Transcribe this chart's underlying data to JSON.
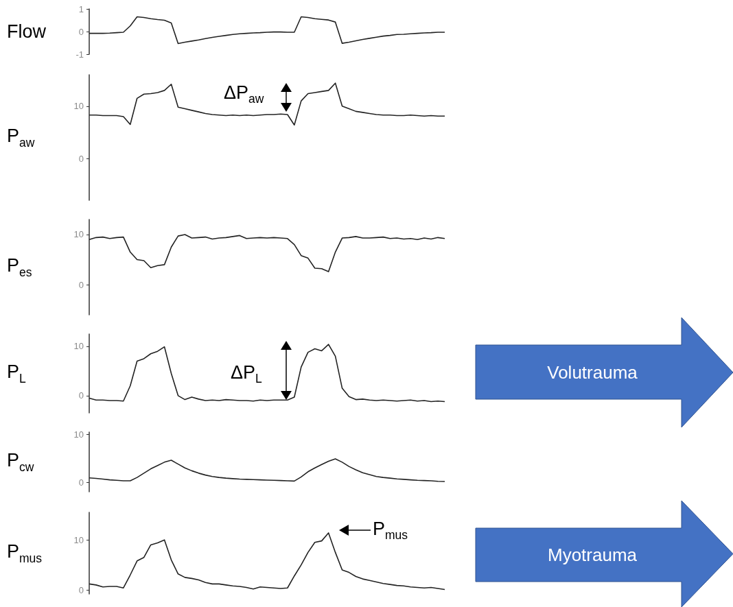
{
  "chart_data": [
    {
      "type": "line",
      "ylabel": "Flow",
      "color": "#222222",
      "tick_labels": "y",
      "ylim": [
        -1,
        1
      ],
      "yticks": [
        -1,
        0,
        1
      ],
      "categories": [
        null,
        null,
        null,
        null,
        null,
        null,
        null,
        null,
        null,
        null,
        null,
        null,
        null,
        null,
        null,
        null,
        null,
        null,
        null,
        null,
        null,
        null,
        null,
        null,
        null,
        null,
        null,
        null,
        null,
        null,
        null,
        null,
        null,
        null,
        null,
        null,
        null,
        null,
        null,
        null,
        null,
        null,
        null,
        null,
        null,
        null,
        null,
        null,
        null,
        null,
        null,
        null,
        null
      ],
      "values": [
        -0.08,
        -0.08,
        -0.08,
        -0.07,
        -0.05,
        -0.03,
        0.25,
        0.65,
        0.62,
        0.57,
        0.53,
        0.5,
        0.38,
        -0.53,
        -0.47,
        -0.42,
        -0.37,
        -0.31,
        -0.26,
        -0.21,
        -0.17,
        -0.13,
        -0.1,
        -0.08,
        -0.06,
        -0.05,
        -0.03,
        -0.02,
        -0.02,
        -0.03,
        -0.03,
        0.65,
        0.62,
        0.57,
        0.54,
        0.51,
        0.42,
        -0.52,
        -0.47,
        -0.41,
        -0.35,
        -0.3,
        -0.25,
        -0.2,
        -0.17,
        -0.13,
        -0.12,
        -0.1,
        -0.08,
        -0.06,
        -0.05,
        -0.03,
        -0.03
      ]
    },
    {
      "type": "line",
      "ylabel": "P$_{aw}$",
      "color": "#222222",
      "tick_labels": "y",
      "ylim": [
        -8,
        16
      ],
      "yticks": [
        0,
        10
      ],
      "annotations": [
        "ΔP$_{aw}$"
      ],
      "categories": [
        null,
        null,
        null,
        null,
        null,
        null,
        null,
        null,
        null,
        null,
        null,
        null,
        null,
        null,
        null,
        null,
        null,
        null,
        null,
        null,
        null,
        null,
        null,
        null,
        null,
        null,
        null,
        null,
        null,
        null,
        null,
        null,
        null,
        null,
        null,
        null,
        null,
        null,
        null,
        null,
        null,
        null,
        null,
        null,
        null,
        null,
        null,
        null,
        null,
        null,
        null,
        null,
        null
      ],
      "values": [
        8.3,
        8.3,
        8.2,
        8.2,
        8.2,
        8.0,
        6.5,
        11.5,
        12.3,
        12.4,
        12.6,
        13.0,
        14.2,
        9.8,
        9.5,
        9.2,
        8.9,
        8.6,
        8.4,
        8.3,
        8.2,
        8.3,
        8.2,
        8.3,
        8.2,
        8.3,
        8.4,
        8.4,
        8.5,
        8.4,
        6.4,
        11.0,
        12.4,
        12.6,
        12.8,
        13.0,
        14.4,
        10.0,
        9.5,
        9.0,
        8.8,
        8.6,
        8.4,
        8.3,
        8.3,
        8.2,
        8.2,
        8.3,
        8.2,
        8.1,
        8.2,
        8.1,
        8.1
      ]
    },
    {
      "type": "line",
      "ylabel": "P$_{es}$",
      "color": "#222222",
      "tick_labels": "y",
      "ylim": [
        -6,
        13
      ],
      "yticks": [
        0,
        10
      ],
      "categories": [
        null,
        null,
        null,
        null,
        null,
        null,
        null,
        null,
        null,
        null,
        null,
        null,
        null,
        null,
        null,
        null,
        null,
        null,
        null,
        null,
        null,
        null,
        null,
        null,
        null,
        null,
        null,
        null,
        null,
        null,
        null,
        null,
        null,
        null,
        null,
        null,
        null,
        null,
        null,
        null,
        null,
        null,
        null,
        null,
        null,
        null,
        null,
        null,
        null,
        null,
        null,
        null,
        null
      ],
      "values": [
        9.0,
        9.4,
        9.5,
        9.2,
        9.4,
        9.5,
        6.5,
        5.0,
        4.8,
        3.4,
        3.8,
        4.0,
        7.5,
        9.7,
        10.0,
        9.3,
        9.4,
        9.5,
        9.1,
        9.3,
        9.4,
        9.6,
        9.8,
        9.2,
        9.3,
        9.4,
        9.3,
        9.4,
        9.3,
        9.2,
        8.0,
        5.8,
        5.3,
        3.3,
        3.2,
        2.6,
        6.5,
        9.3,
        9.4,
        9.6,
        9.3,
        9.3,
        9.4,
        9.5,
        9.2,
        9.3,
        9.1,
        9.2,
        9.0,
        9.3,
        9.1,
        9.4,
        9.2
      ]
    },
    {
      "type": "line",
      "ylabel": "P$_{L}$",
      "color": "#222222",
      "tick_labels": "y",
      "ylim": [
        -3.5,
        12.5
      ],
      "yticks": [
        0,
        10
      ],
      "annotations": [
        "ΔP$_{L}$",
        "Volutrauma"
      ],
      "categories": [
        null,
        null,
        null,
        null,
        null,
        null,
        null,
        null,
        null,
        null,
        null,
        null,
        null,
        null,
        null,
        null,
        null,
        null,
        null,
        null,
        null,
        null,
        null,
        null,
        null,
        null,
        null,
        null,
        null,
        null,
        null,
        null,
        null,
        null,
        null,
        null,
        null,
        null,
        null,
        null,
        null,
        null,
        null,
        null,
        null,
        null,
        null,
        null,
        null,
        null,
        null,
        null,
        null
      ],
      "values": [
        -0.5,
        -0.9,
        -0.9,
        -1.0,
        -1.0,
        -1.1,
        2.0,
        7.0,
        7.5,
        8.5,
        9.0,
        9.9,
        4.5,
        0.0,
        -0.8,
        -0.3,
        -0.7,
        -1.0,
        -0.9,
        -1.0,
        -0.8,
        -0.9,
        -1.0,
        -1.0,
        -1.1,
        -0.9,
        -1.0,
        -0.9,
        -0.9,
        -0.9,
        -0.3,
        5.8,
        8.8,
        9.5,
        9.1,
        10.4,
        8.0,
        1.5,
        -0.2,
        -0.8,
        -0.7,
        -0.9,
        -1.0,
        -0.9,
        -1.0,
        -1.1,
        -1.0,
        -0.9,
        -1.1,
        -1.0,
        -1.2,
        -1.1,
        -1.2
      ]
    },
    {
      "type": "line",
      "ylabel": "P$_{cw}$",
      "color": "#222222",
      "tick_labels": "y",
      "ylim": [
        -2,
        10.5
      ],
      "yticks": [
        0,
        10
      ],
      "categories": [
        null,
        null,
        null,
        null,
        null,
        null,
        null,
        null,
        null,
        null,
        null,
        null,
        null,
        null,
        null,
        null,
        null,
        null,
        null,
        null,
        null,
        null,
        null,
        null,
        null,
        null,
        null,
        null,
        null,
        null,
        null,
        null,
        null,
        null,
        null,
        null,
        null,
        null,
        null,
        null,
        null,
        null,
        null,
        null,
        null,
        null,
        null,
        null,
        null,
        null,
        null,
        null,
        null
      ],
      "values": [
        0.9,
        0.8,
        0.65,
        0.5,
        0.4,
        0.3,
        0.3,
        1.0,
        1.9,
        2.8,
        3.5,
        4.2,
        4.6,
        3.8,
        3.0,
        2.4,
        1.9,
        1.5,
        1.2,
        1.0,
        0.85,
        0.75,
        0.65,
        0.6,
        0.55,
        0.5,
        0.45,
        0.4,
        0.35,
        0.3,
        0.25,
        1.1,
        2.2,
        3.0,
        3.7,
        4.4,
        4.9,
        4.2,
        3.3,
        2.6,
        2.0,
        1.6,
        1.2,
        1.0,
        0.85,
        0.7,
        0.6,
        0.5,
        0.4,
        0.35,
        0.3,
        0.2,
        0.15
      ]
    },
    {
      "type": "line",
      "ylabel": "P$_{mus}$",
      "color": "#222222",
      "tick_labels": "y",
      "ylim": [
        -0.8,
        15.5
      ],
      "yticks": [
        0,
        10
      ],
      "annotations": [
        "P$_{mus}$",
        "Myotrauma"
      ],
      "categories": [
        null,
        null,
        null,
        null,
        null,
        null,
        null,
        null,
        null,
        null,
        null,
        null,
        null,
        null,
        null,
        null,
        null,
        null,
        null,
        null,
        null,
        null,
        null,
        null,
        null,
        null,
        null,
        null,
        null,
        null,
        null,
        null,
        null,
        null,
        null,
        null,
        null,
        null,
        null,
        null,
        null,
        null,
        null,
        null,
        null,
        null,
        null,
        null,
        null,
        null,
        null,
        null,
        null
      ],
      "values": [
        1.2,
        1.0,
        0.6,
        0.7,
        0.7,
        0.4,
        3.0,
        5.8,
        6.5,
        9.0,
        9.4,
        10.0,
        6.0,
        3.2,
        2.5,
        2.3,
        2.0,
        1.5,
        1.2,
        1.2,
        1.0,
        0.8,
        0.7,
        0.5,
        0.2,
        0.6,
        0.5,
        0.4,
        0.3,
        0.4,
        2.8,
        5.0,
        7.5,
        9.5,
        9.8,
        11.4,
        7.5,
        4.0,
        3.5,
        2.7,
        2.2,
        1.9,
        1.6,
        1.3,
        1.1,
        0.9,
        0.8,
        0.6,
        0.5,
        0.4,
        0.5,
        0.3,
        0.1
      ]
    }
  ]
}
